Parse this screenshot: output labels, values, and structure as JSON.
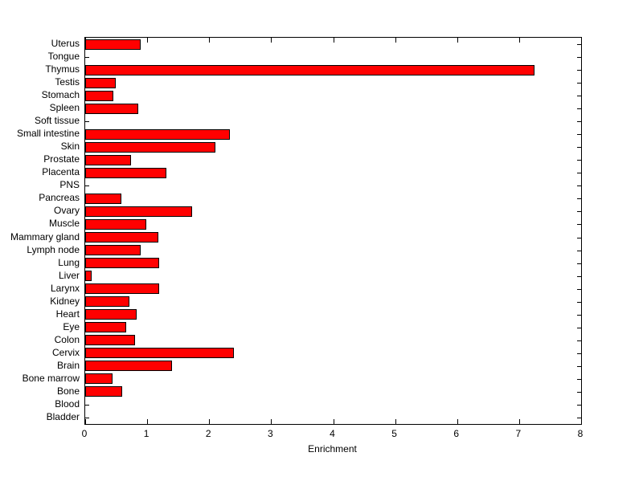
{
  "chart_data": {
    "type": "bar",
    "orientation": "horizontal",
    "title": "",
    "xlabel": "Enrichment",
    "ylabel": "",
    "xlim": [
      0,
      8
    ],
    "x_ticks": [
      0,
      1,
      2,
      3,
      4,
      5,
      6,
      7,
      8
    ],
    "grid": false,
    "legend": false,
    "bar_color": "#FF0000",
    "bar_edge_color": "#000000",
    "axis_color": "#000000",
    "background_color": "#FFFFFF",
    "categories": [
      "Uterus",
      "Tongue",
      "Thymus",
      "Testis",
      "Stomach",
      "Spleen",
      "Soft tissue",
      "Small intestine",
      "Skin",
      "Prostate",
      "Placenta",
      "PNS",
      "Pancreas",
      "Ovary",
      "Muscle",
      "Mammary gland",
      "Lymph node",
      "Lung",
      "Liver",
      "Larynx",
      "Kidney",
      "Heart",
      "Eye",
      "Colon",
      "Cervix",
      "Brain",
      "Bone marrow",
      "Bone",
      "Blood",
      "Bladder"
    ],
    "categories_order": "top-to-bottom",
    "values": [
      0.9,
      0,
      7.25,
      0.49,
      0.45,
      0.85,
      0,
      2.34,
      2.1,
      0.74,
      1.31,
      0,
      0.58,
      1.73,
      0.98,
      1.18,
      0.9,
      1.19,
      0.11,
      1.19,
      0.71,
      0.83,
      0.66,
      0.81,
      2.4,
      1.4,
      0.44,
      0.6,
      0,
      0
    ]
  }
}
